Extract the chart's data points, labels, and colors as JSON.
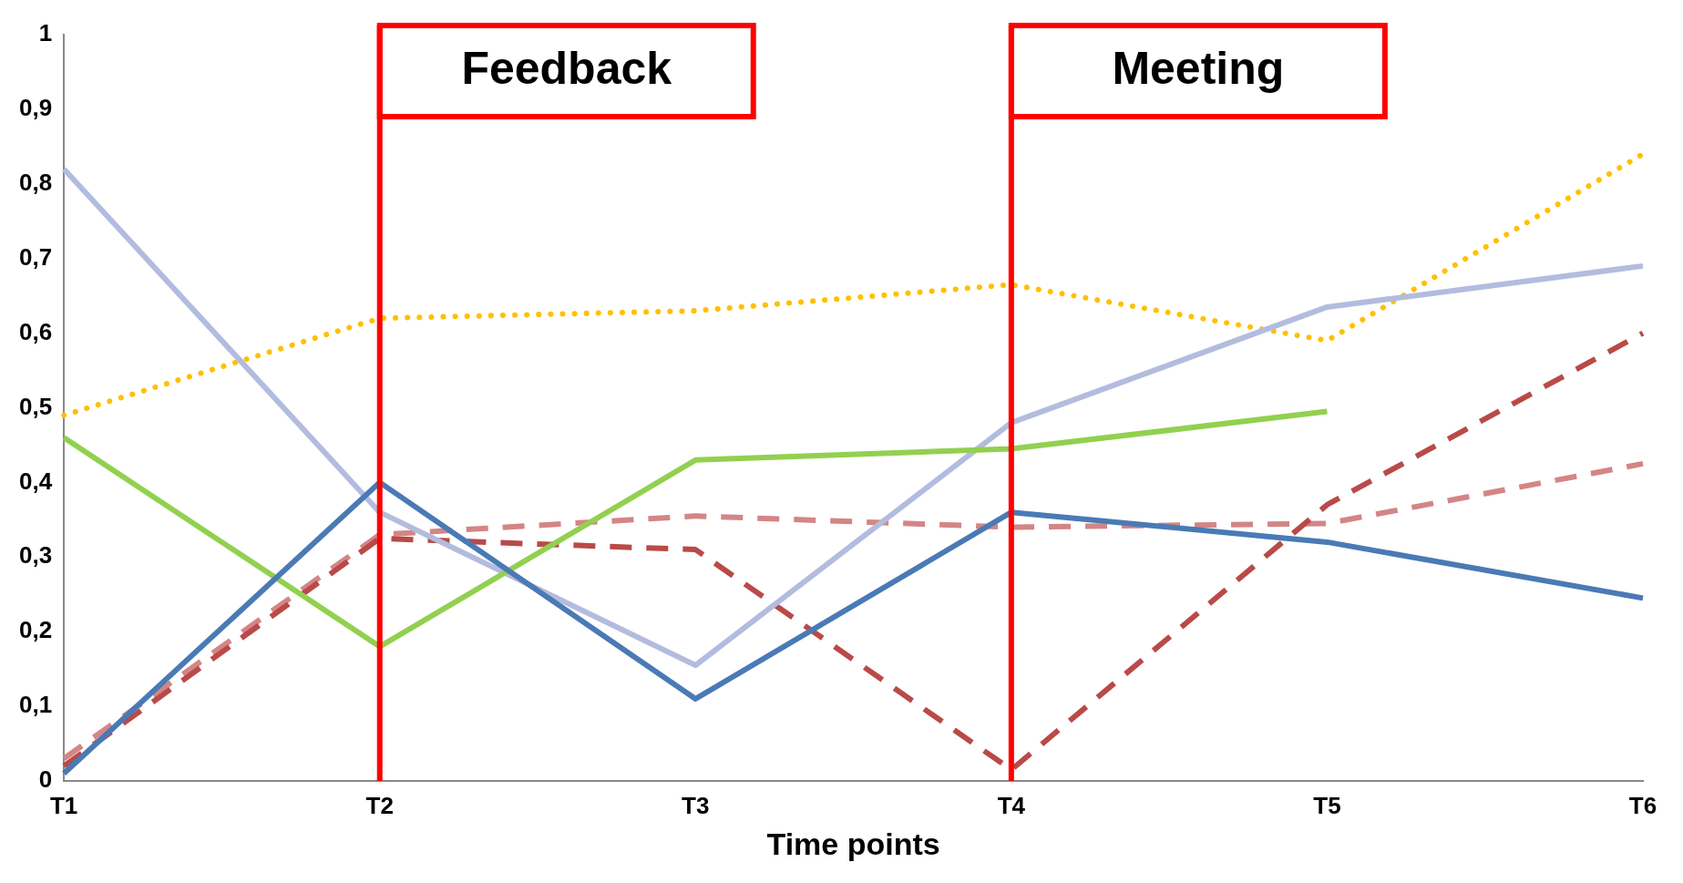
{
  "chart_data": {
    "type": "line",
    "xlabel": "Time points",
    "categories": [
      "T1",
      "T2",
      "T3",
      "T4",
      "T5",
      "T6"
    ],
    "ylim": [
      0,
      1
    ],
    "yticks": [
      {
        "value": 0,
        "label": "0"
      },
      {
        "value": 0.1,
        "label": "0,1"
      },
      {
        "value": 0.2,
        "label": "0,2"
      },
      {
        "value": 0.3,
        "label": "0,3"
      },
      {
        "value": 0.4,
        "label": "0,4"
      },
      {
        "value": 0.5,
        "label": "0,5"
      },
      {
        "value": 0.6,
        "label": "0,6"
      },
      {
        "value": 0.7,
        "label": "0,7"
      },
      {
        "value": 0.8,
        "label": "0,8"
      },
      {
        "value": 0.9,
        "label": "0,9"
      },
      {
        "value": 1,
        "label": "1"
      }
    ],
    "grid": false,
    "legend": false,
    "series": [
      {
        "color": "#4a7ab5",
        "line_style": "solid",
        "values": [
          0.01,
          0.4,
          0.11,
          0.36,
          0.32,
          0.245
        ]
      },
      {
        "color": "#92d050",
        "line_style": "solid",
        "values": [
          0.46,
          0.18,
          0.43,
          0.445,
          0.495,
          null
        ]
      },
      {
        "color": "#b3bcdf",
        "line_style": "solid",
        "values": [
          0.82,
          0.36,
          0.155,
          0.48,
          0.635,
          0.69
        ]
      },
      {
        "color": "#ffc000",
        "line_style": "dotted",
        "values": [
          0.49,
          0.62,
          0.63,
          0.665,
          0.59,
          0.84
        ]
      },
      {
        "color": "#b94a48",
        "line_style": "dashed",
        "values": [
          0.02,
          0.325,
          0.31,
          0.015,
          0.37,
          0.6
        ]
      },
      {
        "color": "#d48585",
        "line_style": "dashed",
        "values": [
          0.03,
          0.33,
          0.355,
          0.34,
          0.345,
          0.425
        ]
      }
    ],
    "ref_lines": [
      {
        "axis": "x",
        "value": "T2",
        "label": "Feedback",
        "color": "#ff0000"
      },
      {
        "axis": "x",
        "value": "T4",
        "label": "Meeting",
        "color": "#ff0000"
      }
    ]
  }
}
